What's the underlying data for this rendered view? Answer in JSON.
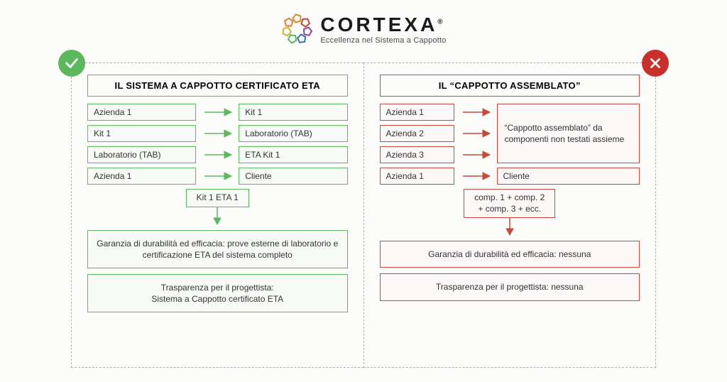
{
  "logo": {
    "title": "CORTEXA",
    "subtitle": "Eccellenza nel Sistema a Cappotto",
    "ring_colors": [
      "#d98c2b",
      "#c54a3a",
      "#8a4a9c",
      "#3a6fb0",
      "#5cb85c",
      "#c9b63a",
      "#e07b3a"
    ]
  },
  "left": {
    "accent": "#5cb85c",
    "title": "IL SISTEMA A CAPPOTTO CERTIFICATO ETA",
    "rows": [
      {
        "l": "Azienda 1",
        "r": "Kit 1"
      },
      {
        "l": "Kit 1",
        "r": "Laboratorio (TAB)"
      },
      {
        "l": "Laboratorio (TAB)",
        "r": "ETA Kit 1"
      },
      {
        "l": "Azienda 1",
        "r": "Cliente"
      }
    ],
    "mid": "Kit 1 ETA 1",
    "info1": "Garanzia di durabilità ed efficacia: prove esterne di laboratorio e certificazione ETA del sistema completo",
    "info2": "Trasparenza per il progettista:\nSistema a Cappotto certificato ETA"
  },
  "right": {
    "accent": "#c54a3a",
    "title": "IL “CAPPOTTO ASSEMBLATO”",
    "left_items": [
      "Azienda 1",
      "Azienda 2",
      "Azienda 3",
      "Azienda 1"
    ],
    "big_cell": "“Cappotto assemblato” da componenti non testati assieme",
    "last_right": "Cliente",
    "mid": "comp. 1 + comp. 2\n+ comp. 3 + ecc.",
    "info1": "Garanzia di durabilità ed efficacia: nessuna",
    "info2": "Trasparenza per il progettista: nessuna"
  }
}
